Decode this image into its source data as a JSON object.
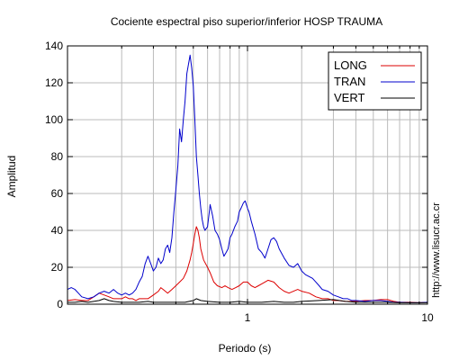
{
  "chart_data": {
    "type": "line",
    "title": "Cociente espectral piso superior/inferior  HOSP TRAUMA",
    "xlabel": "Periodo (s)",
    "ylabel": "Amplitud",
    "x_scale": "log",
    "xlim": [
      0.1,
      10
    ],
    "ylim": [
      0,
      140
    ],
    "x_tick_labels": [
      {
        "value": 1,
        "label": "1"
      },
      {
        "value": 10,
        "label": "10"
      }
    ],
    "y_ticks": [
      0,
      20,
      40,
      60,
      80,
      100,
      120,
      140
    ],
    "y_tick_labels": [
      "0",
      "20",
      "40",
      "60",
      "80",
      "100",
      "120",
      "140"
    ],
    "grid": true,
    "legend_position": "top-right",
    "series": [
      {
        "name": "LONG",
        "color": "#dd0000",
        "points": [
          [
            0.1,
            2
          ],
          [
            0.11,
            2.5
          ],
          [
            0.12,
            2
          ],
          [
            0.13,
            2
          ],
          [
            0.14,
            4
          ],
          [
            0.15,
            6
          ],
          [
            0.16,
            5
          ],
          [
            0.17,
            4
          ],
          [
            0.18,
            3
          ],
          [
            0.19,
            3
          ],
          [
            0.2,
            3
          ],
          [
            0.21,
            4
          ],
          [
            0.22,
            3
          ],
          [
            0.23,
            3
          ],
          [
            0.24,
            2
          ],
          [
            0.25,
            3
          ],
          [
            0.26,
            3
          ],
          [
            0.27,
            3
          ],
          [
            0.28,
            3
          ],
          [
            0.3,
            5
          ],
          [
            0.32,
            7
          ],
          [
            0.33,
            9
          ],
          [
            0.34,
            8
          ],
          [
            0.36,
            6
          ],
          [
            0.38,
            8
          ],
          [
            0.4,
            10
          ],
          [
            0.42,
            12
          ],
          [
            0.44,
            14
          ],
          [
            0.46,
            18
          ],
          [
            0.48,
            24
          ],
          [
            0.49,
            28
          ],
          [
            0.5,
            33
          ],
          [
            0.51,
            38
          ],
          [
            0.52,
            42
          ],
          [
            0.53,
            40
          ],
          [
            0.54,
            36
          ],
          [
            0.55,
            30
          ],
          [
            0.57,
            24
          ],
          [
            0.6,
            20
          ],
          [
            0.62,
            17
          ],
          [
            0.65,
            12
          ],
          [
            0.68,
            10
          ],
          [
            0.72,
            9
          ],
          [
            0.75,
            10
          ],
          [
            0.78,
            9
          ],
          [
            0.82,
            8
          ],
          [
            0.86,
            9
          ],
          [
            0.9,
            10
          ],
          [
            0.95,
            12
          ],
          [
            1.0,
            12
          ],
          [
            1.05,
            10
          ],
          [
            1.1,
            9
          ],
          [
            1.15,
            10
          ],
          [
            1.2,
            11
          ],
          [
            1.3,
            13
          ],
          [
            1.4,
            12
          ],
          [
            1.5,
            9
          ],
          [
            1.6,
            7
          ],
          [
            1.7,
            6
          ],
          [
            1.8,
            7
          ],
          [
            1.9,
            8
          ],
          [
            2.0,
            7
          ],
          [
            2.2,
            6
          ],
          [
            2.4,
            4
          ],
          [
            2.6,
            3
          ],
          [
            2.8,
            3
          ],
          [
            3.0,
            2
          ],
          [
            3.2,
            2
          ],
          [
            3.5,
            1.5
          ],
          [
            4.0,
            1.5
          ],
          [
            4.5,
            2
          ],
          [
            5.0,
            2
          ],
          [
            5.5,
            2.5
          ],
          [
            6.0,
            2.5
          ],
          [
            6.5,
            1.5
          ],
          [
            7,
            1
          ],
          [
            8,
            1
          ],
          [
            9,
            0.8
          ],
          [
            10,
            1
          ]
        ]
      },
      {
        "name": "TRAN",
        "color": "#0000cc",
        "points": [
          [
            0.1,
            8
          ],
          [
            0.105,
            9
          ],
          [
            0.11,
            8
          ],
          [
            0.115,
            6
          ],
          [
            0.12,
            4
          ],
          [
            0.13,
            3
          ],
          [
            0.14,
            4
          ],
          [
            0.15,
            6
          ],
          [
            0.16,
            7
          ],
          [
            0.17,
            6
          ],
          [
            0.18,
            8
          ],
          [
            0.19,
            6
          ],
          [
            0.2,
            5
          ],
          [
            0.21,
            6
          ],
          [
            0.22,
            5
          ],
          [
            0.23,
            6
          ],
          [
            0.24,
            8
          ],
          [
            0.25,
            12
          ],
          [
            0.26,
            15
          ],
          [
            0.27,
            22
          ],
          [
            0.28,
            26
          ],
          [
            0.29,
            22
          ],
          [
            0.3,
            18
          ],
          [
            0.31,
            20
          ],
          [
            0.32,
            25
          ],
          [
            0.33,
            22
          ],
          [
            0.34,
            24
          ],
          [
            0.35,
            30
          ],
          [
            0.36,
            32
          ],
          [
            0.37,
            28
          ],
          [
            0.38,
            36
          ],
          [
            0.39,
            50
          ],
          [
            0.4,
            62
          ],
          [
            0.41,
            75
          ],
          [
            0.42,
            95
          ],
          [
            0.43,
            88
          ],
          [
            0.44,
            100
          ],
          [
            0.45,
            110
          ],
          [
            0.46,
            125
          ],
          [
            0.47,
            130
          ],
          [
            0.48,
            135
          ],
          [
            0.49,
            128
          ],
          [
            0.5,
            118
          ],
          [
            0.51,
            100
          ],
          [
            0.52,
            80
          ],
          [
            0.53,
            70
          ],
          [
            0.54,
            60
          ],
          [
            0.55,
            52
          ],
          [
            0.56,
            46
          ],
          [
            0.57,
            42
          ],
          [
            0.58,
            40
          ],
          [
            0.6,
            42
          ],
          [
            0.62,
            54
          ],
          [
            0.64,
            48
          ],
          [
            0.66,
            40
          ],
          [
            0.68,
            38
          ],
          [
            0.7,
            35
          ],
          [
            0.72,
            30
          ],
          [
            0.74,
            26
          ],
          [
            0.76,
            28
          ],
          [
            0.78,
            30
          ],
          [
            0.8,
            36
          ],
          [
            0.82,
            38
          ],
          [
            0.85,
            42
          ],
          [
            0.88,
            45
          ],
          [
            0.9,
            50
          ],
          [
            0.92,
            52
          ],
          [
            0.95,
            55
          ],
          [
            0.97,
            56
          ],
          [
            1.0,
            52
          ],
          [
            1.02,
            50
          ],
          [
            1.05,
            45
          ],
          [
            1.1,
            38
          ],
          [
            1.15,
            30
          ],
          [
            1.2,
            28
          ],
          [
            1.25,
            25
          ],
          [
            1.3,
            30
          ],
          [
            1.35,
            35
          ],
          [
            1.4,
            36
          ],
          [
            1.45,
            34
          ],
          [
            1.5,
            30
          ],
          [
            1.6,
            25
          ],
          [
            1.7,
            21
          ],
          [
            1.8,
            20
          ],
          [
            1.9,
            22
          ],
          [
            2.0,
            18
          ],
          [
            2.1,
            16
          ],
          [
            2.2,
            15
          ],
          [
            2.3,
            14
          ],
          [
            2.4,
            12
          ],
          [
            2.5,
            10
          ],
          [
            2.6,
            8
          ],
          [
            2.8,
            7
          ],
          [
            3.0,
            5
          ],
          [
            3.2,
            4
          ],
          [
            3.4,
            3
          ],
          [
            3.6,
            3
          ],
          [
            3.8,
            2
          ],
          [
            4.0,
            2
          ],
          [
            4.5,
            1.5
          ],
          [
            5.0,
            2
          ],
          [
            5.5,
            2
          ],
          [
            6.0,
            1.5
          ],
          [
            6.5,
            1
          ],
          [
            7,
            1
          ],
          [
            8,
            0.8
          ],
          [
            9,
            0.8
          ],
          [
            10,
            1
          ]
        ]
      },
      {
        "name": "VERT",
        "color": "#000000",
        "points": [
          [
            0.1,
            1
          ],
          [
            0.11,
            1
          ],
          [
            0.12,
            1.5
          ],
          [
            0.13,
            1
          ],
          [
            0.14,
            1.5
          ],
          [
            0.15,
            2
          ],
          [
            0.16,
            3
          ],
          [
            0.17,
            2
          ],
          [
            0.18,
            1.5
          ],
          [
            0.2,
            1
          ],
          [
            0.22,
            1
          ],
          [
            0.25,
            1
          ],
          [
            0.28,
            1.5
          ],
          [
            0.3,
            1
          ],
          [
            0.35,
            1
          ],
          [
            0.4,
            1
          ],
          [
            0.45,
            1
          ],
          [
            0.5,
            2
          ],
          [
            0.52,
            3
          ],
          [
            0.55,
            2
          ],
          [
            0.6,
            1.5
          ],
          [
            0.7,
            1
          ],
          [
            0.8,
            1
          ],
          [
            0.9,
            1.5
          ],
          [
            1.0,
            1
          ],
          [
            1.2,
            1
          ],
          [
            1.4,
            1.5
          ],
          [
            1.6,
            1
          ],
          [
            1.8,
            1
          ],
          [
            2.0,
            1.5
          ],
          [
            2.5,
            2
          ],
          [
            3.0,
            2.5
          ],
          [
            3.5,
            1.5
          ],
          [
            4.0,
            1
          ],
          [
            5,
            1
          ],
          [
            6,
            1
          ],
          [
            7,
            0.8
          ],
          [
            8,
            0.8
          ],
          [
            10,
            0.8
          ]
        ]
      }
    ]
  },
  "watermark": "http://www.lisucr.ac.cr"
}
